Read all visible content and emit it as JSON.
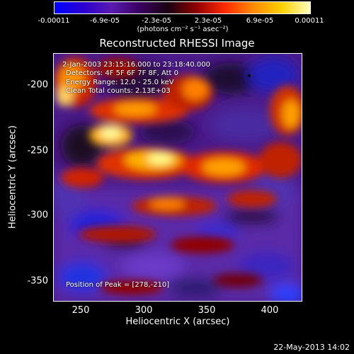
{
  "colorbar": {
    "tick_labels": [
      "-0.00011",
      "-6.9e-05",
      "-2.3e-05",
      "2.3e-05",
      "6.9e-05",
      "0.00011"
    ],
    "units_label": "(photons cm⁻² s⁻¹ asec⁻²)",
    "colors": [
      "#0000ff",
      "#2a00d0",
      "#5a1ab0",
      "#3a0060",
      "#1a0010",
      "#900000",
      "#ff2a00",
      "#ff8a00",
      "#ffd000",
      "#ffffc0"
    ]
  },
  "title": "Reconstructed RHESSI Image",
  "info": {
    "time_range": "2-Jan-2003 23:15:16.000 to 23:18:40.000",
    "detectors": "Detectors: 4F 5F 6F 7F 8F, Att 0",
    "energy": "Energy Range: 12.0 - 25.0 keV",
    "clean": "Clean     Total counts: 2.13E+03",
    "peak": "Position of Peak = [278,-210]"
  },
  "axes": {
    "xlabel": "Heliocentric X (arcsec)",
    "ylabel": "Heliocentric Y (arcsec)",
    "x_ticks": [
      "250",
      "300",
      "350",
      "400"
    ],
    "y_ticks": [
      "-200",
      "-250",
      "-300",
      "-350"
    ]
  },
  "footer": {
    "date": "22-May-2013 14:02"
  }
}
